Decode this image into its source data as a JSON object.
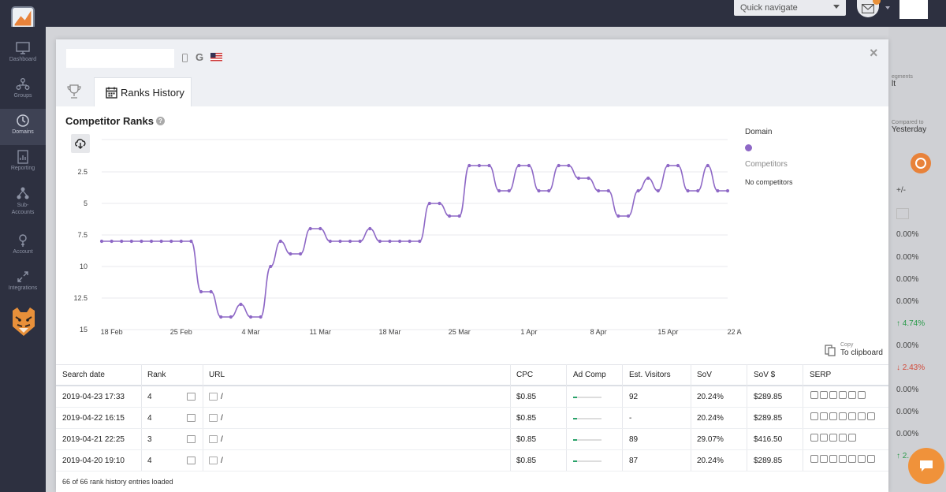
{
  "topbar": {
    "quick_navigate": "Quick navigate"
  },
  "sidebar": {
    "items": [
      {
        "label": "Dashboard",
        "icon": "monitor-icon"
      },
      {
        "label": "Groups",
        "icon": "groups-icon"
      },
      {
        "label": "Domains",
        "icon": "domains-icon"
      },
      {
        "label": "Reporting",
        "icon": "reporting-icon"
      },
      {
        "label": "Sub-Accounts",
        "icon": "sub-accounts-icon"
      },
      {
        "label": "Account",
        "icon": "account-icon"
      },
      {
        "label": "Integrations",
        "icon": "integrations-icon"
      }
    ]
  },
  "background": {
    "segments_label": "egments",
    "segments_value": "lt",
    "compare_label": "Compared to",
    "compare_value": "Yesterday",
    "col_header": "+/-",
    "values": [
      {
        "text": "0.00%",
        "trend": "none"
      },
      {
        "text": "0.00%",
        "trend": "none"
      },
      {
        "text": "0.00%",
        "trend": "none"
      },
      {
        "text": "0.00%",
        "trend": "none"
      },
      {
        "text": "↑ 4.74%",
        "trend": "up"
      },
      {
        "text": "0.00%",
        "trend": "none"
      },
      {
        "text": "↓ 2.43%",
        "trend": "down"
      },
      {
        "text": "0.00%",
        "trend": "none"
      },
      {
        "text": "0.00%",
        "trend": "none"
      },
      {
        "text": "0.00%",
        "trend": "none"
      },
      {
        "text": "↑ 2.",
        "trend": "up"
      }
    ]
  },
  "modal": {
    "tab_label": "Ranks History",
    "section_title": "Competitor Ranks",
    "help": "?",
    "close": "×",
    "g_label": "G",
    "legend": {
      "domain_label": "Domain",
      "domain_color": "#8e68c6",
      "competitors_label": "Competitors",
      "no_competitors": "No competitors"
    },
    "copy_small": "Copy",
    "copy_big": "To clipboard"
  },
  "chart_data": {
    "type": "line",
    "y_reversed": true,
    "ylim": [
      15,
      0
    ],
    "yticks": [
      "2.5",
      "5",
      "7.5",
      "10",
      "12.5",
      "15"
    ],
    "xticks": [
      "18 Feb",
      "25 Feb",
      "4 Mar",
      "11 Mar",
      "18 Mar",
      "25 Mar",
      "1 Apr",
      "8 Apr",
      "15 Apr",
      "22 Apr"
    ],
    "series": [
      {
        "color": "#8e68c6",
        "values": [
          8,
          8,
          8,
          8,
          8,
          8,
          8,
          8,
          8,
          8,
          12,
          12,
          14,
          14,
          13,
          14,
          14,
          10,
          8,
          9,
          9,
          7,
          7,
          8,
          8,
          8,
          8,
          7,
          8,
          8,
          8,
          8,
          8,
          5,
          5,
          6,
          6,
          2,
          2,
          2,
          4,
          4,
          2,
          2,
          4,
          4,
          2,
          2,
          3,
          3,
          4,
          4,
          6,
          6,
          4,
          3,
          4,
          2,
          2,
          4,
          4,
          2,
          4,
          4
        ]
      }
    ]
  },
  "table": {
    "headers": [
      "Search date",
      "Rank",
      "URL",
      "CPC",
      "Ad Comp",
      "Est. Visitors",
      "SoV",
      "SoV $",
      "SERP"
    ],
    "rows": [
      {
        "date": "2019-04-23 17:33",
        "rank": "4",
        "url": "/",
        "cpc": "$0.85",
        "adcomp": 0.15,
        "visitors": "92",
        "sov": "20.24%",
        "sov_usd": "$289.85",
        "serp_count": 6
      },
      {
        "date": "2019-04-22 16:15",
        "rank": "4",
        "url": "/",
        "cpc": "$0.85",
        "adcomp": 0.15,
        "visitors": "-",
        "sov": "20.24%",
        "sov_usd": "$289.85",
        "serp_count": 7
      },
      {
        "date": "2019-04-21 22:25",
        "rank": "3",
        "url": "/",
        "cpc": "$0.85",
        "adcomp": 0.15,
        "visitors": "89",
        "sov": "29.07%",
        "sov_usd": "$416.50",
        "serp_count": 5
      },
      {
        "date": "2019-04-20 19:10",
        "rank": "4",
        "url": "/",
        "cpc": "$0.85",
        "adcomp": 0.15,
        "visitors": "87",
        "sov": "20.24%",
        "sov_usd": "$289.85",
        "serp_count": 7
      }
    ],
    "footer": "66 of 66 rank history entries loaded"
  }
}
